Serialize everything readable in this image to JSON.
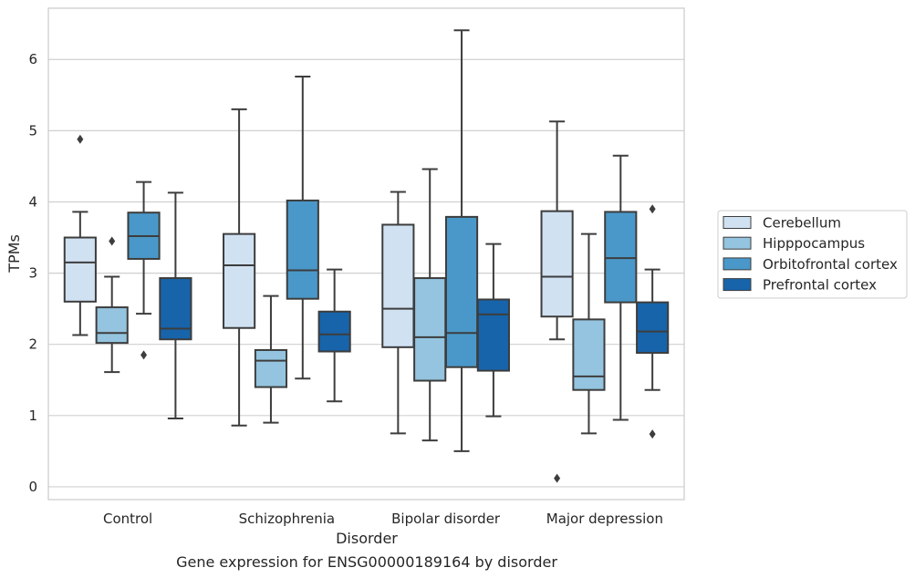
{
  "chart_data": {
    "type": "boxplot",
    "title": "",
    "caption": "Gene expression for ENSG00000189164 by disorder",
    "xlabel": "Disorder",
    "ylabel": "TPMs",
    "ylim": [
      -0.18,
      6.72
    ],
    "yticks": [
      0,
      1,
      2,
      3,
      4,
      5,
      6
    ],
    "grid": "horizontal",
    "legend_position": "right",
    "categories": [
      "Control",
      "Schizophrenia",
      "Bipolar disorder",
      "Major depression"
    ],
    "series": [
      {
        "name": "Cerebellum",
        "color": "#d0e1f2",
        "boxes": [
          {
            "whisker_low": 2.13,
            "q1": 2.6,
            "median": 3.15,
            "q3": 3.5,
            "whisker_high": 3.86,
            "outliers": [
              4.88
            ]
          },
          {
            "whisker_low": 0.86,
            "q1": 2.23,
            "median": 3.11,
            "q3": 3.55,
            "whisker_high": 5.3,
            "outliers": []
          },
          {
            "whisker_low": 0.75,
            "q1": 1.96,
            "median": 2.5,
            "q3": 3.68,
            "whisker_high": 4.14,
            "outliers": []
          },
          {
            "whisker_low": 2.07,
            "q1": 2.39,
            "median": 2.95,
            "q3": 3.87,
            "whisker_high": 5.13,
            "outliers": [
              0.12
            ]
          }
        ]
      },
      {
        "name": "Hipppocampus",
        "color": "#94c4df",
        "boxes": [
          {
            "whisker_low": 1.61,
            "q1": 2.02,
            "median": 2.16,
            "q3": 2.52,
            "whisker_high": 2.95,
            "outliers": [
              3.45
            ]
          },
          {
            "whisker_low": 0.9,
            "q1": 1.4,
            "median": 1.77,
            "q3": 1.92,
            "whisker_high": 2.68,
            "outliers": []
          },
          {
            "whisker_low": 0.65,
            "q1": 1.49,
            "median": 2.1,
            "q3": 2.93,
            "whisker_high": 4.46,
            "outliers": []
          },
          {
            "whisker_low": 0.75,
            "q1": 1.36,
            "median": 1.55,
            "q3": 2.35,
            "whisker_high": 3.55,
            "outliers": []
          }
        ]
      },
      {
        "name": "Orbitofrontal cortex",
        "color": "#4a98c9",
        "boxes": [
          {
            "whisker_low": 2.43,
            "q1": 3.2,
            "median": 3.52,
            "q3": 3.85,
            "whisker_high": 4.28,
            "outliers": [
              1.85
            ]
          },
          {
            "whisker_low": 1.52,
            "q1": 2.64,
            "median": 3.04,
            "q3": 4.02,
            "whisker_high": 5.76,
            "outliers": []
          },
          {
            "whisker_low": 0.5,
            "q1": 1.68,
            "median": 2.16,
            "q3": 3.79,
            "whisker_high": 6.41,
            "outliers": []
          },
          {
            "whisker_low": 0.94,
            "q1": 2.59,
            "median": 3.21,
            "q3": 3.86,
            "whisker_high": 4.65,
            "outliers": []
          }
        ]
      },
      {
        "name": "Prefrontal cortex",
        "color": "#1764ab",
        "boxes": [
          {
            "whisker_low": 0.96,
            "q1": 2.07,
            "median": 2.22,
            "q3": 2.93,
            "whisker_high": 4.13,
            "outliers": []
          },
          {
            "whisker_low": 1.2,
            "q1": 1.9,
            "median": 2.14,
            "q3": 2.46,
            "whisker_high": 3.05,
            "outliers": []
          },
          {
            "whisker_low": 0.99,
            "q1": 1.63,
            "median": 2.42,
            "q3": 2.63,
            "whisker_high": 3.41,
            "outliers": []
          },
          {
            "whisker_low": 1.36,
            "q1": 1.88,
            "median": 2.18,
            "q3": 2.59,
            "whisker_high": 3.05,
            "outliers": [
              3.9,
              0.74
            ]
          }
        ]
      }
    ]
  }
}
